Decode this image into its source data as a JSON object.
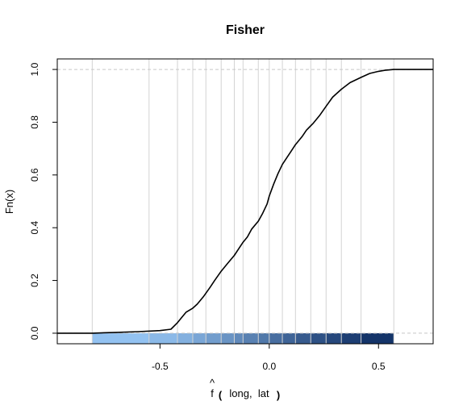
{
  "chart_data": {
    "type": "line",
    "title": "Fisher",
    "ylabel": "Fn(x)",
    "xlabel": {
      "hat": "^",
      "main": "f",
      "paren_open": "(",
      "args": "long,  lat",
      "paren_close": ")"
    },
    "xlim": [
      -0.97,
      0.75
    ],
    "ylim": [
      -0.04,
      1.04
    ],
    "x_ticks": [
      -0.5,
      0.0,
      0.5
    ],
    "x_tick_labels": [
      "-0.5",
      "0.0",
      "0.5"
    ],
    "y_ticks": [
      0.0,
      0.2,
      0.4,
      0.6,
      0.8,
      1.0
    ],
    "y_tick_labels": [
      "0.0",
      "0.2",
      "0.4",
      "0.6",
      "0.8",
      "1.0"
    ],
    "reference_lines_y": [
      0.0,
      1.0
    ],
    "vertical_gridlines_x": [
      -0.81,
      -0.55,
      -0.42,
      -0.35,
      -0.29,
      -0.22,
      -0.16,
      -0.12,
      -0.05,
      0.0,
      0.06,
      0.12,
      0.19,
      0.26,
      0.33,
      0.42,
      0.57
    ],
    "color_bands": {
      "edges": [
        -0.81,
        -0.55,
        -0.42,
        -0.35,
        -0.29,
        -0.22,
        -0.16,
        -0.12,
        -0.05,
        0.0,
        0.06,
        0.12,
        0.19,
        0.26,
        0.33,
        0.42,
        0.57
      ],
      "colors": [
        "#93c2f1",
        "#8bb9e8",
        "#83b0df",
        "#7aa6d6",
        "#729dcd",
        "#6a94c4",
        "#618abb",
        "#5981b2",
        "#5078a9",
        "#486ea0",
        "#3f6497",
        "#375b8e",
        "#2e5185",
        "#26487c",
        "#1d3e73",
        "#143469"
      ]
    },
    "colors": {
      "curve": "#000000",
      "gridline": "#d3d3d3",
      "reference_line": "#c8c8c8",
      "frame": "#000000"
    },
    "series": [
      {
        "x": [
          -0.97,
          -0.81,
          -0.7,
          -0.6,
          -0.5,
          -0.45,
          -0.42,
          -0.4,
          -0.38,
          -0.35,
          -0.33,
          -0.3,
          -0.27,
          -0.25,
          -0.22,
          -0.19,
          -0.16,
          -0.14,
          -0.12,
          -0.1,
          -0.08,
          -0.05,
          -0.03,
          -0.01,
          0.0,
          0.02,
          0.04,
          0.06,
          0.08,
          0.1,
          0.12,
          0.15,
          0.17,
          0.2,
          0.23,
          0.26,
          0.29,
          0.33,
          0.37,
          0.42,
          0.46,
          0.5,
          0.53,
          0.57,
          0.62,
          0.75
        ],
        "y": [
          0.0,
          0.0,
          0.003,
          0.006,
          0.01,
          0.015,
          0.04,
          0.06,
          0.08,
          0.095,
          0.11,
          0.14,
          0.175,
          0.2,
          0.235,
          0.265,
          0.295,
          0.32,
          0.345,
          0.365,
          0.395,
          0.425,
          0.455,
          0.49,
          0.52,
          0.565,
          0.605,
          0.64,
          0.665,
          0.69,
          0.715,
          0.745,
          0.77,
          0.795,
          0.825,
          0.86,
          0.895,
          0.925,
          0.95,
          0.97,
          0.985,
          0.993,
          0.997,
          1.0,
          1.0,
          1.0
        ]
      }
    ]
  }
}
